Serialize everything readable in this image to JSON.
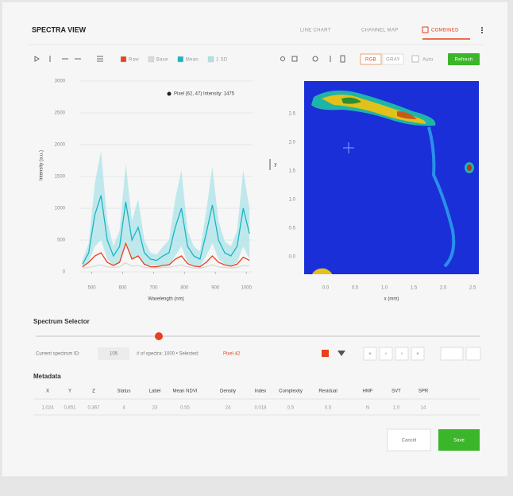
{
  "header": {
    "title": "SPECTRA VIEW",
    "tabs": [
      "LINE CHART",
      "CHANNEL MAP",
      "COMBINED"
    ]
  },
  "toolbar": {
    "buttons": [
      "RGB",
      "GRAY"
    ],
    "checkbox": "Auto",
    "action": "Refresh"
  },
  "chart_data": {
    "type": "line",
    "annotation": "Pixel (62, 47) Intensity: 1475",
    "xlabel": "Wavelength (nm)",
    "ylabel": "Intensity (a.u.)",
    "x": [
      470,
      490,
      510,
      530,
      550,
      570,
      590,
      610,
      630,
      650,
      670,
      690,
      710,
      730,
      750,
      770,
      790,
      810,
      830,
      850,
      870,
      890,
      910,
      930,
      950,
      970,
      990,
      1010
    ],
    "series": [
      {
        "name": "Raw",
        "color": "#e8401c",
        "values": [
          80,
          150,
          250,
          300,
          150,
          100,
          150,
          450,
          200,
          250,
          120,
          80,
          80,
          100,
          110,
          200,
          250,
          130,
          90,
          80,
          150,
          250,
          150,
          110,
          90,
          120,
          230,
          180
        ]
      },
      {
        "name": "Base",
        "color": "#d9d9d9",
        "values": [
          60,
          70,
          90,
          110,
          80,
          70,
          80,
          140,
          90,
          100,
          70,
          60,
          60,
          70,
          70,
          90,
          110,
          80,
          60,
          60,
          80,
          110,
          80,
          70,
          60,
          70,
          100,
          90
        ]
      },
      {
        "name": "Mean",
        "color": "#19b5c2",
        "values": [
          120,
          300,
          900,
          1200,
          500,
          250,
          400,
          1100,
          500,
          700,
          300,
          200,
          180,
          250,
          300,
          700,
          1000,
          400,
          250,
          200,
          600,
          1050,
          500,
          300,
          250,
          400,
          1000,
          600
        ]
      },
      {
        "name": "1 SD",
        "color": "#a8e3e8",
        "band": true,
        "values": [
          60,
          150,
          500,
          700,
          300,
          150,
          250,
          600,
          300,
          450,
          200,
          100,
          90,
          150,
          200,
          450,
          600,
          250,
          150,
          120,
          350,
          600,
          300,
          180,
          150,
          250,
          600,
          400
        ]
      }
    ],
    "xlim": [
      460,
      1020
    ],
    "xticks": [
      500,
      600,
      700,
      800,
      900,
      1000
    ],
    "ylim": [
      0,
      3000
    ],
    "yticks": [
      0,
      500,
      1000,
      1500,
      2000,
      2500,
      3000
    ],
    "grid": true
  },
  "heatmap": {
    "xlabel": "x (mm)",
    "ylabel": "y",
    "xticks": [
      "0.0",
      "0.5",
      "1.0",
      "1.5",
      "2.0",
      "2.5"
    ],
    "yticks": [
      "2.5",
      "2.0",
      "1.5",
      "1.0",
      "0.5",
      "0.0"
    ]
  },
  "selector": {
    "title": "Spectrum Selector",
    "id_label": "Current spectrum ID:",
    "id_value": "105",
    "info": "# of spectra: 1000 • Selected:",
    "link": "Pixel 42",
    "nav": [
      "«",
      "‹",
      "›",
      "»"
    ]
  },
  "metadata": {
    "title": "Metadata",
    "columns": [
      "X",
      "Y",
      "Z",
      "Status",
      "Label",
      "Mean NDVI",
      "Density",
      "Index",
      "Complexity",
      "Residual",
      "HMF",
      "SVT",
      "SPR"
    ],
    "rows": [
      [
        "1.024",
        "0.851",
        "0.367",
        "4",
        "23",
        "0.55",
        "24",
        "0.018",
        "0.5",
        "0.5",
        "N",
        "1.0",
        "14"
      ]
    ]
  },
  "footer": {
    "cancel": "Cancel",
    "save": "Save"
  }
}
